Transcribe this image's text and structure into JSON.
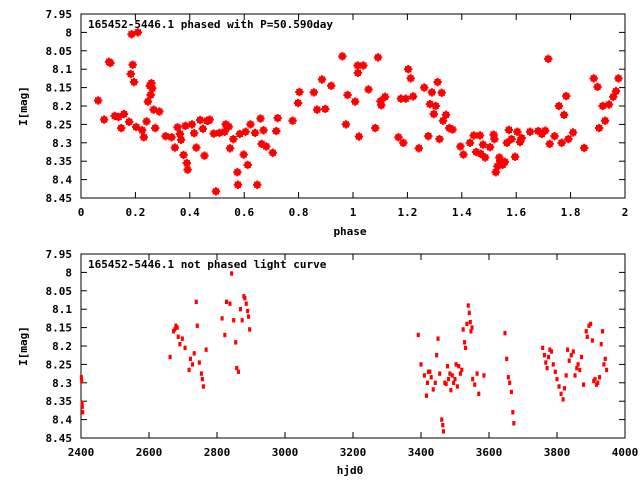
{
  "chart_data": [
    {
      "type": "scatter",
      "title": "165452-5446.1 phased with P=50.590day",
      "xlabel": "phase",
      "ylabel": "I[mag]",
      "xlim": [
        0,
        2
      ],
      "ylim": [
        8.45,
        7.95
      ],
      "y_inverted": true,
      "xticks": [
        0,
        0.2,
        0.4,
        0.6,
        0.8,
        1,
        1.2,
        1.4,
        1.6,
        1.8,
        2
      ],
      "xtick_labels": [
        "0",
        "0.2",
        "0.4",
        "0.6",
        "0.8",
        "1",
        "1.2",
        "1.4",
        "1.6",
        "1.8",
        "2"
      ],
      "yticks": [
        7.95,
        8,
        8.05,
        8.1,
        8.15,
        8.2,
        8.25,
        8.3,
        8.35,
        8.4,
        8.45
      ],
      "ytick_labels": [
        "7.95",
        "8",
        "8.05",
        "8.1",
        "8.15",
        "8.2",
        "8.25",
        "8.3",
        "8.35",
        "8.4",
        "8.45"
      ],
      "grid": false,
      "marker_color": "#ff0000",
      "marker_size": "large",
      "points": [
        [
          0.063,
          8.185
        ],
        [
          0.085,
          8.237
        ],
        [
          0.103,
          8.08
        ],
        [
          0.108,
          8.083
        ],
        [
          0.124,
          8.227
        ],
        [
          0.138,
          8.23
        ],
        [
          0.148,
          8.26
        ],
        [
          0.158,
          8.222
        ],
        [
          0.177,
          8.243
        ],
        [
          0.183,
          8.113
        ],
        [
          0.186,
          8.005
        ],
        [
          0.19,
          8.088
        ],
        [
          0.195,
          8.135
        ],
        [
          0.203,
          8.257
        ],
        [
          0.209,
          8.0
        ],
        [
          0.225,
          8.266
        ],
        [
          0.231,
          8.285
        ],
        [
          0.241,
          8.242
        ],
        [
          0.246,
          8.188
        ],
        [
          0.253,
          8.145
        ],
        [
          0.256,
          8.17
        ],
        [
          0.259,
          8.138
        ],
        [
          0.262,
          8.152
        ],
        [
          0.267,
          8.21
        ],
        [
          0.273,
          8.26
        ],
        [
          0.288,
          8.215
        ],
        [
          0.311,
          8.282
        ],
        [
          0.333,
          8.285
        ],
        [
          0.345,
          8.313
        ],
        [
          0.355,
          8.258
        ],
        [
          0.364,
          8.276
        ],
        [
          0.368,
          8.292
        ],
        [
          0.377,
          8.333
        ],
        [
          0.384,
          8.254
        ],
        [
          0.389,
          8.355
        ],
        [
          0.392,
          8.373
        ],
        [
          0.408,
          8.25
        ],
        [
          0.416,
          8.274
        ],
        [
          0.424,
          8.313
        ],
        [
          0.438,
          8.238
        ],
        [
          0.448,
          8.262
        ],
        [
          0.454,
          8.335
        ],
        [
          0.463,
          8.24
        ],
        [
          0.468,
          8.24
        ],
        [
          0.473,
          8.237
        ],
        [
          0.488,
          8.275
        ],
        [
          0.496,
          8.432
        ],
        [
          0.509,
          8.273
        ],
        [
          0.528,
          8.27
        ],
        [
          0.532,
          8.25
        ],
        [
          0.543,
          8.256
        ],
        [
          0.548,
          8.315
        ],
        [
          0.56,
          8.29
        ],
        [
          0.575,
          8.38
        ],
        [
          0.577,
          8.414
        ],
        [
          0.584,
          8.276
        ],
        [
          0.598,
          8.332
        ],
        [
          0.605,
          8.27
        ],
        [
          0.613,
          8.36
        ],
        [
          0.623,
          8.25
        ],
        [
          0.64,
          8.273
        ],
        [
          0.648,
          8.414
        ],
        [
          0.66,
          8.234
        ],
        [
          0.664,
          8.303
        ],
        [
          0.671,
          8.266
        ],
        [
          0.681,
          8.31
        ],
        [
          0.705,
          8.327
        ],
        [
          0.718,
          8.268
        ],
        [
          0.723,
          8.233
        ],
        [
          0.778,
          8.24
        ],
        [
          0.798,
          8.192
        ],
        [
          0.803,
          8.162
        ],
        [
          0.856,
          8.163
        ],
        [
          0.868,
          8.21
        ],
        [
          0.886,
          8.128
        ],
        [
          0.898,
          8.208
        ],
        [
          0.92,
          8.145
        ],
        [
          0.961,
          8.065
        ],
        [
          0.974,
          8.25
        ],
        [
          0.98,
          8.17
        ],
        [
          1.008,
          8.188
        ],
        [
          1.017,
          8.09
        ],
        [
          1.018,
          8.11
        ],
        [
          1.022,
          8.283
        ],
        [
          1.038,
          8.09
        ],
        [
          1.057,
          8.155
        ],
        [
          1.082,
          8.26
        ],
        [
          1.092,
          8.068
        ],
        [
          1.101,
          8.187
        ],
        [
          1.104,
          8.198
        ],
        [
          1.118,
          8.175
        ],
        [
          1.167,
          8.285
        ],
        [
          1.176,
          8.18
        ],
        [
          1.185,
          8.3
        ],
        [
          1.194,
          8.18
        ],
        [
          1.203,
          8.1
        ],
        [
          1.212,
          8.125
        ],
        [
          1.221,
          8.174
        ],
        [
          1.242,
          8.315
        ],
        [
          1.262,
          8.15
        ],
        [
          1.277,
          8.282
        ],
        [
          1.283,
          8.195
        ],
        [
          1.29,
          8.163
        ],
        [
          1.297,
          8.222
        ],
        [
          1.304,
          8.2
        ],
        [
          1.311,
          8.135
        ],
        [
          1.318,
          8.29
        ],
        [
          1.326,
          8.164
        ],
        [
          1.331,
          8.24
        ],
        [
          1.342,
          8.224
        ],
        [
          1.354,
          8.26
        ],
        [
          1.366,
          8.264
        ],
        [
          1.395,
          8.31
        ],
        [
          1.406,
          8.332
        ],
        [
          1.43,
          8.3
        ],
        [
          1.444,
          8.28
        ],
        [
          1.453,
          8.325
        ],
        [
          1.467,
          8.28
        ],
        [
          1.47,
          8.33
        ],
        [
          1.478,
          8.305
        ],
        [
          1.486,
          8.34
        ],
        [
          1.504,
          8.312
        ],
        [
          1.517,
          8.278
        ],
        [
          1.52,
          8.29
        ],
        [
          1.525,
          8.38
        ],
        [
          1.531,
          8.364
        ],
        [
          1.538,
          8.34
        ],
        [
          1.541,
          8.35
        ],
        [
          1.55,
          8.36
        ],
        [
          1.558,
          8.352
        ],
        [
          1.566,
          8.3
        ],
        [
          1.573,
          8.265
        ],
        [
          1.583,
          8.29
        ],
        [
          1.596,
          8.338
        ],
        [
          1.604,
          8.27
        ],
        [
          1.614,
          8.298
        ],
        [
          1.62,
          8.287
        ],
        [
          1.651,
          8.27
        ],
        [
          1.681,
          8.268
        ],
        [
          1.694,
          8.276
        ],
        [
          1.707,
          8.267
        ],
        [
          1.718,
          8.072
        ],
        [
          1.723,
          8.303
        ],
        [
          1.741,
          8.282
        ],
        [
          1.757,
          8.2
        ],
        [
          1.767,
          8.3
        ],
        [
          1.776,
          8.224
        ],
        [
          1.784,
          8.173
        ],
        [
          1.792,
          8.29
        ],
        [
          1.809,
          8.272
        ],
        [
          1.85,
          8.314
        ],
        [
          1.885,
          8.125
        ],
        [
          1.899,
          8.148
        ],
        [
          1.905,
          8.26
        ],
        [
          1.918,
          8.2
        ],
        [
          1.927,
          8.24
        ],
        [
          1.941,
          8.196
        ],
        [
          1.957,
          8.175
        ],
        [
          1.967,
          8.16
        ],
        [
          1.976,
          8.125
        ]
      ]
    },
    {
      "type": "scatter",
      "title": "165452-5446.1 not phased light curve",
      "xlabel": "hjd0",
      "ylabel": "I[mag]",
      "xlim": [
        2400,
        4000
      ],
      "ylim": [
        8.45,
        7.95
      ],
      "y_inverted": true,
      "xticks": [
        2400,
        2600,
        2800,
        3000,
        3200,
        3400,
        3600,
        3800,
        4000
      ],
      "xtick_labels": [
        "2400",
        "2600",
        "2800",
        "3000",
        "3200",
        "3400",
        "3600",
        "3800",
        "4000"
      ],
      "yticks": [
        7.95,
        8,
        8.05,
        8.1,
        8.15,
        8.2,
        8.25,
        8.3,
        8.35,
        8.4,
        8.45
      ],
      "ytick_labels": [
        "7.95",
        "8",
        "8.05",
        "8.1",
        "8.15",
        "8.2",
        "8.25",
        "8.3",
        "8.35",
        "8.4",
        "8.45"
      ],
      "grid": false,
      "marker_color": "#ff0000",
      "marker_size": "small",
      "points": [
        [
          2401,
          8.285
        ],
        [
          2402,
          8.295
        ],
        [
          2403,
          8.355
        ],
        [
          2404,
          8.365
        ],
        [
          2405,
          8.38
        ],
        [
          2662,
          8.23
        ],
        [
          2672,
          8.16
        ],
        [
          2676,
          8.155
        ],
        [
          2679,
          8.145
        ],
        [
          2683,
          8.15
        ],
        [
          2686,
          8.175
        ],
        [
          2691,
          8.195
        ],
        [
          2698,
          8.18
        ],
        [
          2706,
          8.205
        ],
        [
          2718,
          8.265
        ],
        [
          2722,
          8.235
        ],
        [
          2728,
          8.25
        ],
        [
          2733,
          8.22
        ],
        [
          2739,
          8.08
        ],
        [
          2742,
          8.145
        ],
        [
          2748,
          8.245
        ],
        [
          2754,
          8.275
        ],
        [
          2757,
          8.29
        ],
        [
          2760,
          8.31
        ],
        [
          2768,
          8.21
        ],
        [
          2815,
          8.125
        ],
        [
          2823,
          8.17
        ],
        [
          2828,
          8.08
        ],
        [
          2838,
          8.085
        ],
        [
          2843,
          8.003
        ],
        [
          2849,
          8.13
        ],
        [
          2855,
          8.19
        ],
        [
          2858,
          8.26
        ],
        [
          2863,
          8.27
        ],
        [
          2869,
          8.1
        ],
        [
          2874,
          8.13
        ],
        [
          2879,
          8.065
        ],
        [
          2882,
          8.07
        ],
        [
          2886,
          8.085
        ],
        [
          2890,
          8.105
        ],
        [
          2893,
          8.12
        ],
        [
          2896,
          8.155
        ],
        [
          3392,
          8.17
        ],
        [
          3400,
          8.25
        ],
        [
          3410,
          8.28
        ],
        [
          3416,
          8.335
        ],
        [
          3419,
          8.3
        ],
        [
          3422,
          8.27
        ],
        [
          3426,
          8.27
        ],
        [
          3430,
          8.285
        ],
        [
          3436,
          8.318
        ],
        [
          3442,
          8.3
        ],
        [
          3446,
          8.225
        ],
        [
          3450,
          8.18
        ],
        [
          3455,
          8.275
        ],
        [
          3461,
          8.4
        ],
        [
          3464,
          8.415
        ],
        [
          3466,
          8.432
        ],
        [
          3470,
          8.3
        ],
        [
          3474,
          8.303
        ],
        [
          3478,
          8.255
        ],
        [
          3481,
          8.29
        ],
        [
          3485,
          8.275
        ],
        [
          3488,
          8.32
        ],
        [
          3492,
          8.28
        ],
        [
          3496,
          8.3
        ],
        [
          3500,
          8.29
        ],
        [
          3503,
          8.25
        ],
        [
          3507,
          8.31
        ],
        [
          3511,
          8.255
        ],
        [
          3516,
          8.275
        ],
        [
          3520,
          8.265
        ],
        [
          3524,
          8.155
        ],
        [
          3528,
          8.19
        ],
        [
          3531,
          8.205
        ],
        [
          3535,
          8.14
        ],
        [
          3539,
          8.09
        ],
        [
          3542,
          8.11
        ],
        [
          3545,
          8.135
        ],
        [
          3547,
          8.16
        ],
        [
          3550,
          8.15
        ],
        [
          3552,
          8.29
        ],
        [
          3558,
          8.305
        ],
        [
          3565,
          8.275
        ],
        [
          3570,
          8.33
        ],
        [
          3585,
          8.28
        ],
        [
          3647,
          8.165
        ],
        [
          3652,
          8.235
        ],
        [
          3657,
          8.285
        ],
        [
          3661,
          8.3
        ],
        [
          3666,
          8.325
        ],
        [
          3670,
          8.38
        ],
        [
          3673,
          8.41
        ],
        [
          3758,
          8.205
        ],
        [
          3763,
          8.225
        ],
        [
          3767,
          8.245
        ],
        [
          3771,
          8.26
        ],
        [
          3775,
          8.23
        ],
        [
          3779,
          8.21
        ],
        [
          3784,
          8.215
        ],
        [
          3789,
          8.25
        ],
        [
          3795,
          8.27
        ],
        [
          3800,
          8.29
        ],
        [
          3806,
          8.31
        ],
        [
          3812,
          8.33
        ],
        [
          3818,
          8.345
        ],
        [
          3822,
          8.315
        ],
        [
          3827,
          8.28
        ],
        [
          3831,
          8.21
        ],
        [
          3836,
          8.24
        ],
        [
          3842,
          8.225
        ],
        [
          3848,
          8.215
        ],
        [
          3853,
          8.28
        ],
        [
          3858,
          8.26
        ],
        [
          3862,
          8.25
        ],
        [
          3867,
          8.265
        ],
        [
          3872,
          8.23
        ],
        [
          3878,
          8.305
        ],
        [
          3886,
          8.16
        ],
        [
          3889,
          8.175
        ],
        [
          3894,
          8.145
        ],
        [
          3899,
          8.14
        ],
        [
          3904,
          8.185
        ],
        [
          3908,
          8.295
        ],
        [
          3912,
          8.29
        ],
        [
          3916,
          8.305
        ],
        [
          3920,
          8.3
        ],
        [
          3925,
          8.285
        ],
        [
          3930,
          8.195
        ],
        [
          3934,
          8.16
        ],
        [
          3938,
          8.25
        ],
        [
          3942,
          8.235
        ],
        [
          3946,
          8.265
        ]
      ]
    }
  ]
}
